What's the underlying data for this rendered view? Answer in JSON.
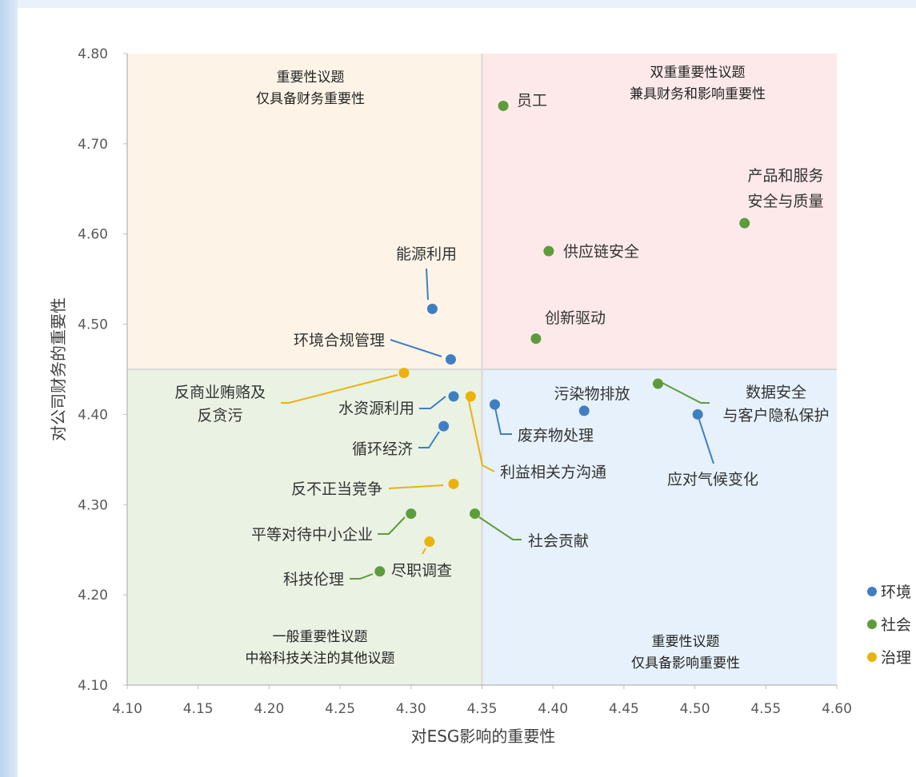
{
  "chart_data": {
    "type": "scatter",
    "xlabel": "对ESG影响的重要性",
    "ylabel": "对公司财务的重要性",
    "xlim": [
      4.1,
      4.6
    ],
    "ylim": [
      4.1,
      4.8
    ],
    "x_ticks": [
      "4.10",
      "4.15",
      "4.20",
      "4.25",
      "4.30",
      "4.35",
      "4.40",
      "4.45",
      "4.50",
      "4.55",
      "4.60"
    ],
    "y_ticks": [
      "4.10",
      "4.20",
      "4.30",
      "4.40",
      "4.50",
      "4.60",
      "4.70",
      "4.80"
    ],
    "x_threshold": 4.35,
    "y_threshold": 4.45,
    "grid": false,
    "legend_position": "right",
    "categories": [
      {
        "name": "环境",
        "color": "#3f7fc1"
      },
      {
        "name": "社会",
        "color": "#5d9c3b"
      },
      {
        "name": "治理",
        "color": "#ebb20e"
      }
    ],
    "quadrants": [
      {
        "id": "top-left",
        "lines": [
          "重要性议题",
          "仅具备财务重要性"
        ],
        "color": "#fdf4e7"
      },
      {
        "id": "top-right",
        "lines": [
          "双重重要性议题",
          "兼具财务和影响重要性"
        ],
        "color": "#fde9e9"
      },
      {
        "id": "bottom-left",
        "lines": [
          "一般重要性议题",
          "中裕科技关注的其他议题"
        ],
        "color": "#e9f2e3"
      },
      {
        "id": "bottom-right",
        "lines": [
          "重要性议题",
          "仅具备影响重要性"
        ],
        "color": "#e6f1fb"
      }
    ],
    "points": [
      {
        "label": [
          "员工"
        ],
        "category": "社会",
        "x": 4.365,
        "y": 4.742
      },
      {
        "label": [
          "产品和服务",
          "安全与质量"
        ],
        "category": "社会",
        "x": 4.535,
        "y": 4.612
      },
      {
        "label": [
          "供应链安全"
        ],
        "category": "社会",
        "x": 4.397,
        "y": 4.581
      },
      {
        "label": [
          "创新驱动"
        ],
        "category": "社会",
        "x": 4.388,
        "y": 4.484
      },
      {
        "label": [
          "能源利用"
        ],
        "category": "环境",
        "x": 4.315,
        "y": 4.517
      },
      {
        "label": [
          "环境合规管理"
        ],
        "category": "环境",
        "x": 4.328,
        "y": 4.461
      },
      {
        "label": [
          "反商业贿赂及",
          "反贪污"
        ],
        "category": "治理",
        "x": 4.295,
        "y": 4.446
      },
      {
        "label": [
          "水资源利用"
        ],
        "category": "环境",
        "x": 4.33,
        "y": 4.42
      },
      {
        "label": [
          "利益相关方沟通"
        ],
        "category": "治理",
        "x": 4.342,
        "y": 4.42
      },
      {
        "label": [
          "废弃物处理"
        ],
        "category": "环境",
        "x": 4.359,
        "y": 4.411
      },
      {
        "label": [
          "污染物排放"
        ],
        "category": "环境",
        "x": 4.422,
        "y": 4.404
      },
      {
        "label": [
          "数据安全",
          "与客户隐私保护"
        ],
        "category": "社会",
        "x": 4.474,
        "y": 4.434
      },
      {
        "label": [
          "应对气候变化"
        ],
        "category": "环境",
        "x": 4.502,
        "y": 4.4
      },
      {
        "label": [
          "循环经济"
        ],
        "category": "环境",
        "x": 4.323,
        "y": 4.387
      },
      {
        "label": [
          "反不正当竞争"
        ],
        "category": "治理",
        "x": 4.33,
        "y": 4.323
      },
      {
        "label": [
          "平等对待中小企业"
        ],
        "category": "社会",
        "x": 4.3,
        "y": 4.29
      },
      {
        "label": [
          "社会贡献"
        ],
        "category": "社会",
        "x": 4.345,
        "y": 4.29
      },
      {
        "label": [
          "尽职调查"
        ],
        "category": "治理",
        "x": 4.313,
        "y": 4.259
      },
      {
        "label": [
          "科技伦理"
        ],
        "category": "社会",
        "x": 4.278,
        "y": 4.226
      }
    ]
  }
}
